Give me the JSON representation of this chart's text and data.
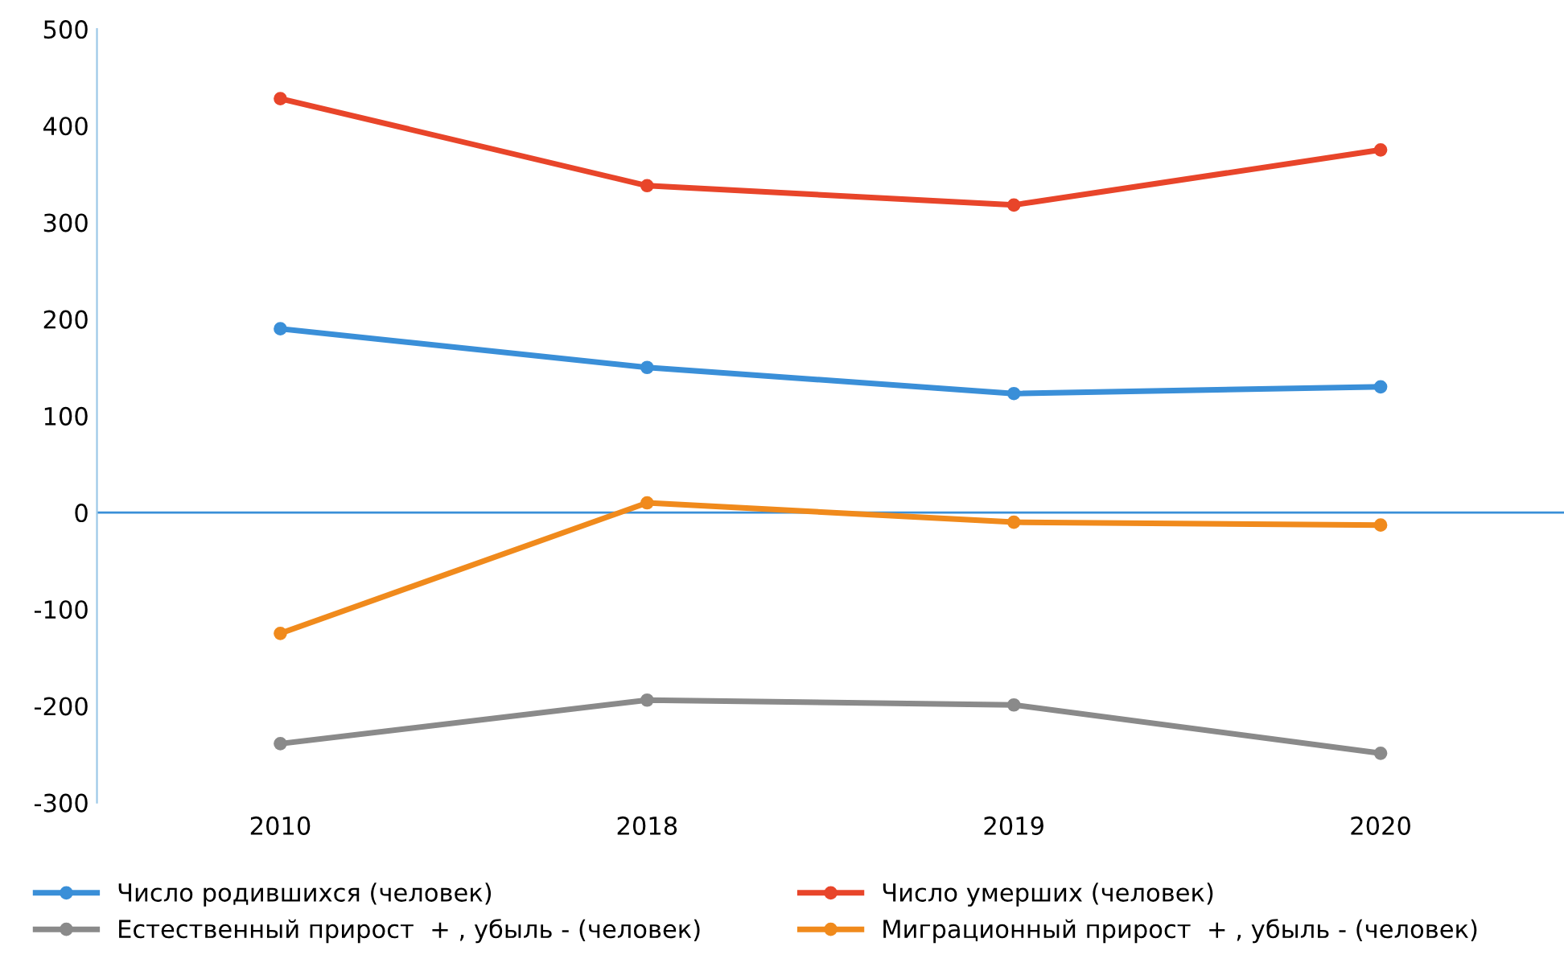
{
  "chart_data": {
    "type": "line",
    "categories": [
      "2010",
      "2018",
      "2019",
      "2020"
    ],
    "series": [
      {
        "name": "Число родившихся (человек)",
        "color": "#3a8fd8",
        "values": [
          190,
          150,
          123,
          130
        ]
      },
      {
        "name": "Число умерших (человек)",
        "color": "#e8452a",
        "values": [
          428,
          338,
          318,
          375
        ]
      },
      {
        "name": "Естественный прирост  + , убыль - (человек)",
        "color": "#8a8a8a",
        "values": [
          -239,
          -194,
          -199,
          -249
        ]
      },
      {
        "name": "Миграционный прирост  + , убыль - (человек)",
        "color": "#f08a1c",
        "values": [
          -125,
          10,
          -10,
          -13
        ]
      }
    ],
    "ylim": [
      -300,
      500
    ],
    "yticks": [
      -300,
      -200,
      -100,
      0,
      100,
      200,
      300,
      400,
      500
    ],
    "ref_lines": [
      {
        "axis": "y",
        "value": 0,
        "color": "#3a8fd8"
      }
    ],
    "grid": false,
    "legend": "bottom",
    "marker": "circle",
    "line_style": "solid"
  }
}
